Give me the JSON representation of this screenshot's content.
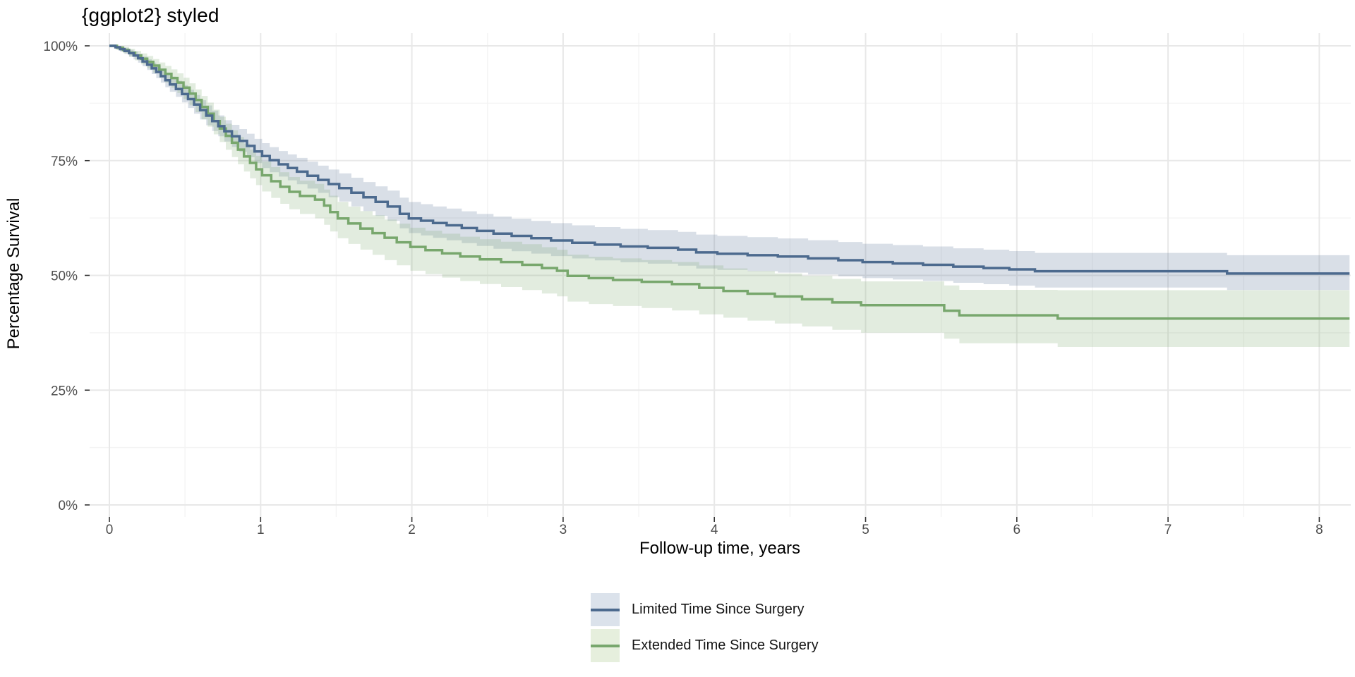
{
  "title": "{ggplot2} styled",
  "chart_data": {
    "type": "line",
    "subtype": "kaplan-meier-step-with-confidence-bands",
    "title": "{ggplot2} styled",
    "xlabel": "Follow-up time, years",
    "ylabel": "Percentage Survival",
    "x_ticks": {
      "values": [
        0,
        1,
        2,
        3,
        4,
        5,
        6,
        7,
        8
      ],
      "labels": [
        "0",
        "1",
        "2",
        "3",
        "4",
        "5",
        "6",
        "7",
        "8"
      ]
    },
    "y_ticks": {
      "values": [
        0,
        25,
        50,
        75,
        100
      ],
      "labels": [
        "0%",
        "25%",
        "50%",
        "75%",
        "100%"
      ]
    },
    "x_minor_gridlines": [
      0.5,
      1.5,
      2.5,
      3.5,
      4.5,
      5.5,
      6.5,
      7.5
    ],
    "y_minor_gridlines": [
      12.5,
      37.5,
      62.5,
      87.5
    ],
    "xlim": [
      -0.13,
      8.21
    ],
    "ylim": [
      -2.6,
      102.8
    ],
    "grid": "major+minor",
    "legend_position": "bottom-center",
    "end_time": 8.2,
    "colors": {
      "major_gridline": "#e8e8e8",
      "minor_gridline": "#f4f4f4",
      "tick_mark": "#333333",
      "tick_label": "#4d4d4d",
      "background": "#ffffff"
    },
    "series": [
      {
        "name": "Limited Time Since Surgery",
        "line_color": "#4c6a8e",
        "band_color": "#4a688e",
        "band_alpha": 0.21,
        "points": [
          [
            0,
            100
          ],
          [
            0.04,
            99.7
          ],
          [
            0.07,
            99.3
          ],
          [
            0.1,
            98.9
          ],
          [
            0.13,
            98.4
          ],
          [
            0.16,
            97.9
          ],
          [
            0.19,
            97.3
          ],
          [
            0.22,
            96.6
          ],
          [
            0.25,
            95.9
          ],
          [
            0.28,
            95.1
          ],
          [
            0.31,
            94.3
          ],
          [
            0.34,
            93.4
          ],
          [
            0.37,
            92.5
          ],
          [
            0.4,
            91.6
          ],
          [
            0.44,
            90.6
          ],
          [
            0.48,
            89.5
          ],
          [
            0.52,
            88.4
          ],
          [
            0.56,
            87.2
          ],
          [
            0.6,
            86
          ],
          [
            0.64,
            84.8
          ],
          [
            0.68,
            83.6
          ],
          [
            0.72,
            82.5
          ],
          [
            0.76,
            81.4
          ],
          [
            0.81,
            80.3
          ],
          [
            0.86,
            79.3
          ],
          [
            0.91,
            78.2
          ],
          [
            0.96,
            77
          ],
          [
            1.01,
            76
          ],
          [
            1.06,
            75.1
          ],
          [
            1.12,
            74.2
          ],
          [
            1.18,
            73.4
          ],
          [
            1.24,
            72.6
          ],
          [
            1.31,
            71.7
          ],
          [
            1.38,
            70.8
          ],
          [
            1.45,
            69.9
          ],
          [
            1.52,
            69
          ],
          [
            1.6,
            68
          ],
          [
            1.68,
            67
          ],
          [
            1.76,
            66
          ],
          [
            1.84,
            65
          ],
          [
            1.92,
            63.4
          ],
          [
            1.98,
            62.4
          ],
          [
            2.06,
            61.9
          ],
          [
            2.14,
            61.4
          ],
          [
            2.23,
            60.9
          ],
          [
            2.33,
            60.3
          ],
          [
            2.43,
            59.7
          ],
          [
            2.54,
            59.1
          ],
          [
            2.66,
            58.6
          ],
          [
            2.79,
            58.1
          ],
          [
            2.92,
            57.6
          ],
          [
            3.06,
            57.1
          ],
          [
            3.21,
            56.7
          ],
          [
            3.38,
            56.3
          ],
          [
            3.56,
            56
          ],
          [
            3.76,
            55.6
          ],
          [
            3.88,
            55
          ],
          [
            4.02,
            54.7
          ],
          [
            4.22,
            54.4
          ],
          [
            4.42,
            54.1
          ],
          [
            4.62,
            53.7
          ],
          [
            4.82,
            53.3
          ],
          [
            4.98,
            52.9
          ],
          [
            5.18,
            52.6
          ],
          [
            5.38,
            52.3
          ],
          [
            5.58,
            51.9
          ],
          [
            5.78,
            51.6
          ],
          [
            5.95,
            51.3
          ],
          [
            6.12,
            50.9
          ],
          [
            7.39,
            50.4
          ]
        ],
        "ci_upper_offsets": [
          [
            0,
            0.3
          ],
          [
            0.2,
            1.0
          ],
          [
            0.5,
            2.0
          ],
          [
            1,
            2.8
          ],
          [
            1.5,
            3.2
          ],
          [
            2,
            3.6
          ],
          [
            3,
            3.8
          ],
          [
            4,
            3.9
          ],
          [
            5,
            4.0
          ],
          [
            8.2,
            4.0
          ]
        ],
        "ci_lower_offsets": [
          [
            0,
            0.3
          ],
          [
            0.2,
            1.0
          ],
          [
            0.5,
            1.9
          ],
          [
            1,
            2.6
          ],
          [
            1.5,
            2.9
          ],
          [
            2,
            3.2
          ],
          [
            3,
            3.4
          ],
          [
            4,
            3.5
          ],
          [
            5,
            3.5
          ],
          [
            8.2,
            3.6
          ]
        ]
      },
      {
        "name": "Extended Time Since Surgery",
        "line_color": "#78a76d",
        "band_color": "#79a86e",
        "band_alpha": 0.22,
        "points": [
          [
            0,
            100
          ],
          [
            0.05,
            99.6
          ],
          [
            0.09,
            99.1
          ],
          [
            0.13,
            98.5
          ],
          [
            0.17,
            97.9
          ],
          [
            0.21,
            97.2
          ],
          [
            0.25,
            96.5
          ],
          [
            0.29,
            95.7
          ],
          [
            0.33,
            94.8
          ],
          [
            0.37,
            93.9
          ],
          [
            0.41,
            93
          ],
          [
            0.45,
            92
          ],
          [
            0.49,
            90.9
          ],
          [
            0.53,
            89.6
          ],
          [
            0.57,
            88.2
          ],
          [
            0.61,
            86.7
          ],
          [
            0.65,
            85.2
          ],
          [
            0.69,
            83.6
          ],
          [
            0.73,
            82
          ],
          [
            0.77,
            80.4
          ],
          [
            0.81,
            78.9
          ],
          [
            0.85,
            77.4
          ],
          [
            0.89,
            75.9
          ],
          [
            0.93,
            74.5
          ],
          [
            0.97,
            73.1
          ],
          [
            1.01,
            71.8
          ],
          [
            1.07,
            70.5
          ],
          [
            1.13,
            69.3
          ],
          [
            1.19,
            68.2
          ],
          [
            1.26,
            67.3
          ],
          [
            1.36,
            66.5
          ],
          [
            1.42,
            65.2
          ],
          [
            1.46,
            63.8
          ],
          [
            1.51,
            62.4
          ],
          [
            1.58,
            61.3
          ],
          [
            1.66,
            60.2
          ],
          [
            1.74,
            59.2
          ],
          [
            1.82,
            58.2
          ],
          [
            1.9,
            57.2
          ],
          [
            1.99,
            56.2
          ],
          [
            2.09,
            55.5
          ],
          [
            2.2,
            54.8
          ],
          [
            2.32,
            54.1
          ],
          [
            2.45,
            53.5
          ],
          [
            2.59,
            52.9
          ],
          [
            2.73,
            52.3
          ],
          [
            2.86,
            51.6
          ],
          [
            2.96,
            51
          ],
          [
            3.03,
            49.9
          ],
          [
            3.17,
            49.4
          ],
          [
            3.33,
            49
          ],
          [
            3.52,
            48.6
          ],
          [
            3.72,
            48.1
          ],
          [
            3.9,
            47.3
          ],
          [
            4.06,
            46.6
          ],
          [
            4.22,
            46
          ],
          [
            4.4,
            45.4
          ],
          [
            4.58,
            44.8
          ],
          [
            4.78,
            44.1
          ],
          [
            4.97,
            43.5
          ],
          [
            5.52,
            42.3
          ],
          [
            5.62,
            41.3
          ],
          [
            6.27,
            40.6
          ]
        ],
        "ci_upper_offsets": [
          [
            0,
            0.3
          ],
          [
            0.2,
            1.1
          ],
          [
            0.5,
            2.2
          ],
          [
            1,
            3.0
          ],
          [
            1.5,
            3.6
          ],
          [
            2,
            4.2
          ],
          [
            3,
            4.6
          ],
          [
            4,
            4.9
          ],
          [
            5,
            5.2
          ],
          [
            5.7,
            5.6
          ],
          [
            6.3,
            6.2
          ],
          [
            8.2,
            6.3
          ]
        ],
        "ci_lower_offsets": [
          [
            0,
            0.3
          ],
          [
            0.2,
            1.2
          ],
          [
            0.5,
            2.5
          ],
          [
            1,
            3.5
          ],
          [
            1.5,
            4.3
          ],
          [
            2,
            5.2
          ],
          [
            3,
            5.6
          ],
          [
            4,
            5.8
          ],
          [
            5,
            6.0
          ],
          [
            5.7,
            6.1
          ],
          [
            6.3,
            6.2
          ],
          [
            8.2,
            6.2
          ]
        ]
      }
    ]
  },
  "legend": {
    "items": [
      {
        "label": "Limited Time Since Surgery",
        "line_color": "#4c6a8e",
        "fill_color": "#dbe2eb"
      },
      {
        "label": "Extended Time Since Surgery",
        "line_color": "#78a76d",
        "fill_color": "#e6efdd"
      }
    ]
  }
}
